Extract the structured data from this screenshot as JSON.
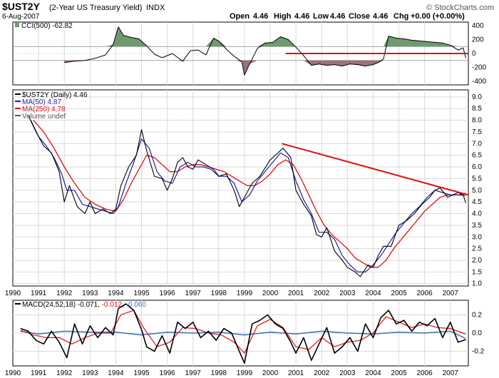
{
  "header": {
    "symbol": "$UST2Y",
    "name": "(2-Year US Treasury Yield)",
    "exchange": "INDX",
    "date": "6-Aug-2007",
    "copyright": "© StockCharts.com",
    "quote": {
      "open_label": "Open",
      "open": "4.46",
      "high_label": "High",
      "high": "4.46",
      "low_label": "Low",
      "low": "4.46",
      "close_label": "Close",
      "close": "4.46",
      "chg_label": "Chg",
      "chg": "+0.00 (+0.00%)"
    }
  },
  "colors": {
    "price": "#000000",
    "ma50": "#1f1fa0",
    "ma250": "#dd1111",
    "trend": "#dd1111",
    "cci_pos_fill": "#6f9a6f",
    "cci_neg_fill": "#9c7272",
    "macd_line": "#000000",
    "macd_signal": "#dd1111",
    "macd_hist": "#3a6fb5",
    "panel_bg": "#ffffff",
    "grid": "#d9d9d9",
    "legend_down_arrow": "#dd1111"
  },
  "chart_data": [
    {
      "type": "line",
      "name": "cci_panel",
      "legend": {
        "label": "CCI(500)",
        "value": "-62.82"
      },
      "ylim": [
        -450,
        450
      ],
      "yticks": [
        "400",
        "200",
        "0",
        "-200",
        "-400"
      ],
      "reference_levels": [
        100,
        -100
      ],
      "zero_line": 0,
      "xlim": [
        1990,
        2007.7
      ],
      "series": [
        {
          "name": "CCI(500)",
          "x": [
            1992.0,
            1992.4,
            1992.8,
            1993.2,
            1993.6,
            1993.9,
            1994.1,
            1994.3,
            1994.6,
            1994.9,
            1995.2,
            1995.5,
            1995.8,
            1996.2,
            1996.6,
            1996.9,
            1997.2,
            1997.5,
            1997.8,
            1998.0,
            1998.3,
            1998.6,
            1998.9,
            1999.0,
            1999.2,
            1999.5,
            1999.8,
            2000.1,
            2000.4,
            2000.7,
            2001.0,
            2001.3,
            2001.6,
            2001.9,
            2002.2,
            2002.5,
            2002.8,
            2003.1,
            2003.4,
            2003.7,
            2004.0,
            2004.2,
            2004.4,
            2004.6,
            2004.9,
            2005.2,
            2005.5,
            2005.8,
            2006.1,
            2006.4,
            2006.7,
            2007.0,
            2007.3,
            2007.5,
            2007.6
          ],
          "values": [
            -130,
            -110,
            -100,
            -70,
            -20,
            130,
            380,
            260,
            230,
            210,
            110,
            -10,
            -60,
            0,
            -110,
            40,
            50,
            -20,
            220,
            180,
            60,
            -40,
            -120,
            -310,
            -150,
            70,
            150,
            160,
            240,
            200,
            90,
            -30,
            -170,
            -150,
            -170,
            -160,
            -180,
            -150,
            -160,
            -180,
            -160,
            -130,
            -80,
            250,
            220,
            210,
            190,
            180,
            170,
            160,
            150,
            120,
            50,
            80,
            -63
          ]
        }
      ],
      "annotations": [
        {
          "type": "horizontal_line",
          "from_x": 2000.6,
          "to_x": 2007.7,
          "y": 0
        }
      ]
    },
    {
      "type": "line",
      "name": "price_panel",
      "legend": [
        {
          "label": "$UST2Y (Daily)",
          "value": "4.46"
        },
        {
          "label": "MA(50)",
          "value": "4.87"
        },
        {
          "label": "MA(250)",
          "value": "4.78"
        },
        {
          "label": "Volume",
          "value": "undef"
        }
      ],
      "ylim": [
        0.9,
        9.3
      ],
      "yticks": [
        "9.0",
        "8.5",
        "8.0",
        "7.5",
        "7.0",
        "6.5",
        "6.0",
        "5.5",
        "5.0",
        "4.5",
        "4.0",
        "3.5",
        "3.0",
        "2.5",
        "2.0",
        "1.5",
        "1.0"
      ],
      "xlim": [
        1990,
        2007.7
      ],
      "xticks": [
        "1990",
        "1991",
        "1992",
        "1993",
        "1994",
        "1995",
        "1996",
        "1997",
        "1998",
        "1999",
        "2000",
        "2001",
        "2002",
        "2003",
        "2004",
        "2005",
        "2006",
        "2007"
      ],
      "series": [
        {
          "name": "$UST2Y (Daily)",
          "x": [
            1990.6,
            1990.9,
            1991.2,
            1991.5,
            1991.8,
            1992.0,
            1992.2,
            1992.5,
            1992.8,
            1993.0,
            1993.2,
            1993.5,
            1993.8,
            1994.0,
            1994.2,
            1994.5,
            1994.8,
            1995.0,
            1995.2,
            1995.5,
            1995.8,
            1996.0,
            1996.2,
            1996.4,
            1996.6,
            1996.8,
            1997.0,
            1997.2,
            1997.5,
            1997.8,
            1998.0,
            1998.3,
            1998.6,
            1998.8,
            1999.0,
            1999.3,
            1999.6,
            2000.0,
            2000.3,
            2000.5,
            2000.8,
            2001.0,
            2001.3,
            2001.6,
            2001.8,
            2002.0,
            2002.2,
            2002.5,
            2002.8,
            2003.0,
            2003.3,
            2003.5,
            2003.8,
            2004.0,
            2004.2,
            2004.4,
            2004.7,
            2005.0,
            2005.3,
            2005.6,
            2005.9,
            2006.2,
            2006.4,
            2006.6,
            2006.9,
            2007.1,
            2007.3,
            2007.5,
            2007.6
          ],
          "values": [
            8.2,
            7.5,
            6.9,
            6.6,
            5.8,
            4.5,
            5.2,
            4.3,
            4.0,
            4.5,
            4.0,
            4.2,
            4.0,
            4.2,
            5.2,
            6.0,
            6.5,
            7.6,
            6.7,
            5.6,
            5.5,
            5.0,
            5.5,
            6.2,
            6.4,
            6.0,
            5.9,
            6.3,
            6.1,
            5.9,
            5.6,
            5.7,
            5.0,
            4.3,
            4.7,
            5.3,
            5.6,
            6.3,
            6.6,
            6.8,
            6.4,
            5.0,
            4.4,
            3.9,
            3.1,
            3.0,
            3.4,
            2.4,
            2.0,
            1.7,
            1.5,
            1.3,
            1.8,
            1.7,
            2.2,
            2.6,
            2.6,
            3.5,
            3.7,
            4.0,
            4.4,
            4.7,
            5.0,
            5.1,
            4.7,
            4.8,
            4.9,
            4.8,
            4.46
          ]
        },
        {
          "name": "MA(50)",
          "x": [
            1990.7,
            1991.0,
            1991.3,
            1991.6,
            1991.9,
            1992.1,
            1992.4,
            1992.7,
            1993.0,
            1993.3,
            1993.6,
            1993.9,
            1994.1,
            1994.4,
            1994.7,
            1995.0,
            1995.3,
            1995.6,
            1995.9,
            1996.2,
            1996.5,
            1996.8,
            1997.1,
            1997.4,
            1997.7,
            1998.0,
            1998.3,
            1998.6,
            1998.9,
            1999.2,
            1999.5,
            1999.8,
            2000.1,
            2000.4,
            2000.7,
            2001.0,
            2001.3,
            2001.6,
            2001.9,
            2002.2,
            2002.5,
            2002.8,
            2003.1,
            2003.4,
            2003.7,
            2004.0,
            2004.3,
            2004.6,
            2004.9,
            2005.2,
            2005.5,
            2005.8,
            2006.1,
            2006.4,
            2006.7,
            2007.0,
            2007.3,
            2007.6
          ],
          "values": [
            8.0,
            7.3,
            6.9,
            6.4,
            5.7,
            5.0,
            5.0,
            4.4,
            4.3,
            4.2,
            4.1,
            4.0,
            4.3,
            5.3,
            6.2,
            7.2,
            6.8,
            5.8,
            5.4,
            5.3,
            6.0,
            6.2,
            6.0,
            6.0,
            5.9,
            5.6,
            5.6,
            5.3,
            4.5,
            4.8,
            5.4,
            5.8,
            6.2,
            6.6,
            6.4,
            5.4,
            4.6,
            4.0,
            3.2,
            3.2,
            2.9,
            2.2,
            1.8,
            1.5,
            1.5,
            1.8,
            2.2,
            2.7,
            3.2,
            3.6,
            4.0,
            4.3,
            4.7,
            5.0,
            4.9,
            4.8,
            4.8,
            4.87
          ]
        },
        {
          "name": "MA(250)",
          "x": [
            1990.8,
            1991.2,
            1991.6,
            1992.0,
            1992.4,
            1992.8,
            1993.2,
            1993.6,
            1994.0,
            1994.3,
            1994.6,
            1994.9,
            1995.2,
            1995.5,
            1995.8,
            1996.1,
            1996.4,
            1996.7,
            1997.0,
            1997.3,
            1997.6,
            1997.9,
            1998.2,
            1998.5,
            1998.8,
            1999.1,
            1999.4,
            1999.7,
            2000.0,
            2000.3,
            2000.6,
            2000.9,
            2001.2,
            2001.5,
            2001.8,
            2002.1,
            2002.4,
            2002.7,
            2003.0,
            2003.3,
            2003.6,
            2003.9,
            2004.2,
            2004.5,
            2004.8,
            2005.1,
            2005.4,
            2005.7,
            2006.0,
            2006.3,
            2006.6,
            2006.9,
            2007.2,
            2007.6
          ],
          "values": [
            8.0,
            7.5,
            6.8,
            6.0,
            5.3,
            4.7,
            4.4,
            4.2,
            4.1,
            4.6,
            5.3,
            5.9,
            6.5,
            6.4,
            6.1,
            5.8,
            5.8,
            6.0,
            6.1,
            6.1,
            6.0,
            5.9,
            5.8,
            5.6,
            5.4,
            5.2,
            5.2,
            5.4,
            5.7,
            6.1,
            6.3,
            6.1,
            5.5,
            4.8,
            4.1,
            3.5,
            3.1,
            2.8,
            2.5,
            2.1,
            1.9,
            1.7,
            1.7,
            2.0,
            2.5,
            2.9,
            3.3,
            3.7,
            4.1,
            4.4,
            4.7,
            4.8,
            4.8,
            4.78
          ]
        }
      ],
      "annotations": [
        {
          "type": "trendline",
          "from": [
            2000.45,
            7.0
          ],
          "to": [
            2007.7,
            4.8
          ]
        }
      ]
    },
    {
      "type": "line",
      "name": "macd_panel",
      "legend": {
        "label": "MACD(24,52,18)",
        "macd": "-0.071",
        "signal": "-0.012",
        "histogram": "-0.060"
      },
      "ylim": [
        -0.36,
        0.36
      ],
      "yticks": [
        "0.2",
        "0.0",
        "-0.2"
      ],
      "xlim": [
        1990,
        2007.7
      ],
      "xticks": [
        "1990",
        "1991",
        "1992",
        "1993",
        "1994",
        "1995",
        "1996",
        "1997",
        "1998",
        "1999",
        "2000",
        "2001",
        "2002",
        "2003",
        "2004",
        "2005",
        "2006",
        "2007"
      ],
      "series": [
        {
          "name": "MACD",
          "x": [
            1990.3,
            1990.6,
            1990.9,
            1991.2,
            1991.5,
            1991.8,
            1992.1,
            1992.4,
            1992.7,
            1993.0,
            1993.3,
            1993.6,
            1993.9,
            1994.1,
            1994.4,
            1994.7,
            1995.0,
            1995.2,
            1995.5,
            1995.8,
            1996.1,
            1996.4,
            1996.7,
            1997.0,
            1997.3,
            1997.6,
            1997.9,
            1998.2,
            1998.5,
            1998.8,
            1999.0,
            1999.3,
            1999.6,
            1999.9,
            2000.2,
            2000.5,
            2000.8,
            2001.0,
            2001.3,
            2001.6,
            2001.9,
            2002.2,
            2002.5,
            2002.8,
            2003.1,
            2003.4,
            2003.7,
            2004.0,
            2004.3,
            2004.6,
            2004.9,
            2005.2,
            2005.5,
            2005.8,
            2006.1,
            2006.4,
            2006.7,
            2007.0,
            2007.3,
            2007.6
          ],
          "values": [
            0.05,
            0.02,
            -0.08,
            -0.12,
            0.02,
            -0.1,
            -0.27,
            0.1,
            -0.12,
            0.08,
            -0.05,
            0.06,
            -0.02,
            0.27,
            0.32,
            0.25,
            0.04,
            -0.15,
            -0.2,
            -0.03,
            -0.22,
            0.12,
            0.05,
            0.12,
            -0.05,
            0.02,
            -0.08,
            0.05,
            0.0,
            -0.2,
            -0.33,
            0.1,
            0.14,
            0.2,
            0.1,
            0.05,
            -0.1,
            -0.22,
            -0.05,
            -0.3,
            -0.12,
            0.06,
            -0.22,
            -0.15,
            -0.05,
            -0.2,
            0.1,
            -0.05,
            0.17,
            0.25,
            0.1,
            0.14,
            0.02,
            0.12,
            0.08,
            0.16,
            -0.05,
            0.12,
            -0.1,
            -0.071
          ]
        },
        {
          "name": "Signal",
          "x": [
            1990.3,
            1990.8,
            1991.3,
            1991.8,
            1992.3,
            1992.8,
            1993.3,
            1993.8,
            1994.2,
            1994.7,
            1995.1,
            1995.6,
            1996.1,
            1996.6,
            1997.1,
            1997.6,
            1998.1,
            1998.6,
            1999.0,
            1999.5,
            2000.0,
            2000.5,
            2001.0,
            2001.5,
            2002.0,
            2002.5,
            2003.0,
            2003.5,
            2004.0,
            2004.5,
            2005.0,
            2005.5,
            2006.0,
            2006.5,
            2007.0,
            2007.6
          ],
          "values": [
            0.03,
            -0.02,
            -0.05,
            -0.05,
            -0.12,
            -0.05,
            0.0,
            0.0,
            0.2,
            0.25,
            0.05,
            -0.15,
            -0.1,
            0.06,
            0.05,
            0.0,
            -0.02,
            -0.1,
            -0.22,
            0.08,
            0.15,
            0.06,
            -0.15,
            -0.18,
            -0.05,
            -0.15,
            -0.1,
            -0.08,
            0.0,
            0.18,
            0.12,
            0.06,
            0.1,
            0.06,
            0.05,
            -0.012
          ]
        },
        {
          "name": "Histogram",
          "x": [
            1990.3,
            1991.0,
            1992.0,
            1993.0,
            1994.0,
            1995.0,
            1996.0,
            1997.0,
            1998.0,
            1999.0,
            2000.0,
            2001.0,
            2002.0,
            2003.0,
            2004.0,
            2005.0,
            2006.0,
            2007.0,
            2007.6
          ],
          "values": [
            0.02,
            -0.01,
            0.02,
            0.01,
            0.01,
            -0.02,
            0.01,
            0.0,
            0.01,
            -0.02,
            0.01,
            -0.01,
            0.02,
            0.0,
            -0.01,
            0.01,
            0.0,
            0.02,
            -0.06
          ]
        }
      ]
    }
  ]
}
